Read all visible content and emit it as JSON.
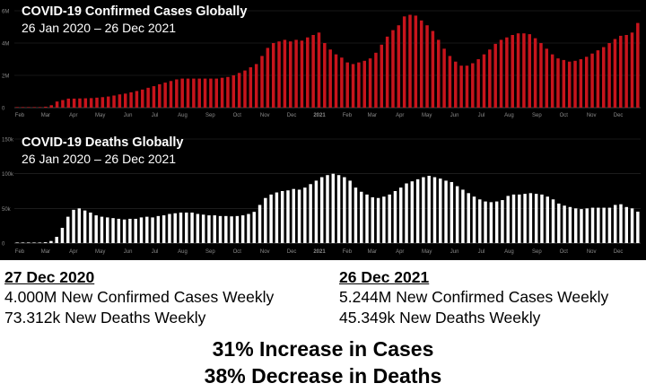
{
  "charts": [
    {
      "title": "COVID-19 Confirmed Cases Globally",
      "subtitle": "26 Jan 2020 – 26 Dec 2021",
      "color": "#c8141c",
      "y_ticks": [
        "0",
        "2M",
        "4M",
        "6M"
      ],
      "x_ticks": [
        "Feb",
        "Mar",
        "Apr",
        "May",
        "Jun",
        "Jul",
        "Aug",
        "Sep",
        "Oct",
        "Nov",
        "Dec",
        "2021",
        "Feb",
        "Mar",
        "Apr",
        "May",
        "Jun",
        "Jul",
        "Aug",
        "Sep",
        "Oct",
        "Nov",
        "Dec"
      ]
    },
    {
      "title": "COVID-19 Deaths Globally",
      "subtitle": "26 Jan 2020 – 26 Dec 2021",
      "color": "#ffffff",
      "y_ticks": [
        "0",
        "50k",
        "100k",
        "150k"
      ],
      "x_ticks": [
        "Feb",
        "Mar",
        "Apr",
        "May",
        "Jun",
        "Jul",
        "Aug",
        "Sep",
        "Oct",
        "Nov",
        "Dec",
        "2021",
        "Feb",
        "Mar",
        "Apr",
        "May",
        "Jun",
        "Jul",
        "Aug",
        "Sep",
        "Oct",
        "Nov",
        "Dec"
      ]
    }
  ],
  "chart_data": [
    {
      "type": "bar",
      "title": "COVID-19 Confirmed Cases Globally",
      "subtitle": "26 Jan 2020 – 26 Dec 2021",
      "xlabel": "",
      "ylabel": "",
      "ylim": [
        0,
        6000000
      ],
      "x_start": "2020-01-26",
      "x_end": "2021-12-26",
      "series": [
        {
          "values": [
            2000,
            2500,
            3000,
            8000,
            15000,
            60000,
            150000,
            380000,
            470000,
            560000,
            560000,
            570000,
            580000,
            590000,
            620000,
            650000,
            690000,
            750000,
            820000,
            870000,
            950000,
            1030000,
            1120000,
            1230000,
            1330000,
            1450000,
            1550000,
            1650000,
            1750000,
            1800000,
            1800000,
            1800000,
            1800000,
            1800000,
            1800000,
            1800000,
            1850000,
            1900000,
            2000000,
            2150000,
            2300000,
            2500000,
            2700000,
            3200000,
            3700000,
            4000000,
            4100000,
            4200000,
            4100000,
            4200000,
            4150000,
            4350000,
            4500000,
            4650000,
            4000000,
            3600000,
            3300000,
            3100000,
            2800000,
            2700000,
            2800000,
            2900000,
            3050000,
            3400000,
            3900000,
            4400000,
            4800000,
            5100000,
            5650000,
            5750000,
            5700000,
            5400000,
            5100000,
            4750000,
            4200000,
            3650000,
            3200000,
            2850000,
            2600000,
            2600000,
            2750000,
            3000000,
            3300000,
            3600000,
            3950000,
            4200000,
            4350000,
            4500000,
            4600000,
            4600000,
            4550000,
            4300000,
            4000000,
            3650000,
            3300000,
            3050000,
            2950000,
            2850000,
            2900000,
            3000000,
            3150000,
            3350000,
            3550000,
            3750000,
            4000000,
            4250000,
            4450000,
            4500000,
            4650000,
            5244000
          ]
        }
      ]
    },
    {
      "type": "bar",
      "title": "COVID-19 Deaths Globally",
      "subtitle": "26 Jan 2020 – 26 Dec 2021",
      "xlabel": "",
      "ylabel": "",
      "ylim": [
        0,
        150000
      ],
      "x_start": "2020-01-26",
      "x_end": "2021-12-26",
      "series": [
        {
          "values": [
            50,
            100,
            200,
            300,
            500,
            1200,
            3000,
            9000,
            22000,
            38000,
            48000,
            50000,
            47000,
            44000,
            40000,
            38000,
            37000,
            36000,
            35000,
            34000,
            35000,
            35000,
            37000,
            38000,
            37000,
            39000,
            40000,
            42000,
            43000,
            44000,
            44000,
            44000,
            42000,
            41000,
            40000,
            40000,
            39000,
            39000,
            38500,
            39000,
            40000,
            42000,
            45000,
            55000,
            65000,
            70000,
            73000,
            75000,
            76000,
            78000,
            77000,
            80000,
            85000,
            90000,
            95000,
            98000,
            100000,
            98000,
            95000,
            90000,
            80000,
            74000,
            70000,
            66000,
            65000,
            67000,
            70000,
            75000,
            80000,
            86000,
            89000,
            92000,
            95000,
            97000,
            95000,
            93000,
            90000,
            88000,
            82000,
            77000,
            72000,
            67000,
            63000,
            60000,
            59000,
            60000,
            62000,
            68000,
            70000,
            70000,
            71000,
            72000,
            71000,
            70000,
            67000,
            63000,
            57000,
            54000,
            52000,
            50000,
            49000,
            50000,
            51000,
            51000,
            51000,
            51000,
            55000,
            56000,
            52000,
            50000,
            45349
          ]
        }
      ]
    }
  ],
  "stats": {
    "left": {
      "date": "27 Dec 2020",
      "cases": "4.000M New Confirmed Cases Weekly",
      "deaths": "73.312k New Deaths Weekly"
    },
    "right": {
      "date": "26 Dec 2021",
      "cases": "5.244M New Confirmed Cases Weekly",
      "deaths": "45.349k New Deaths Weekly"
    }
  },
  "conclusion": {
    "line1": "31% Increase in Cases",
    "line2": "38% Decrease in Deaths"
  }
}
